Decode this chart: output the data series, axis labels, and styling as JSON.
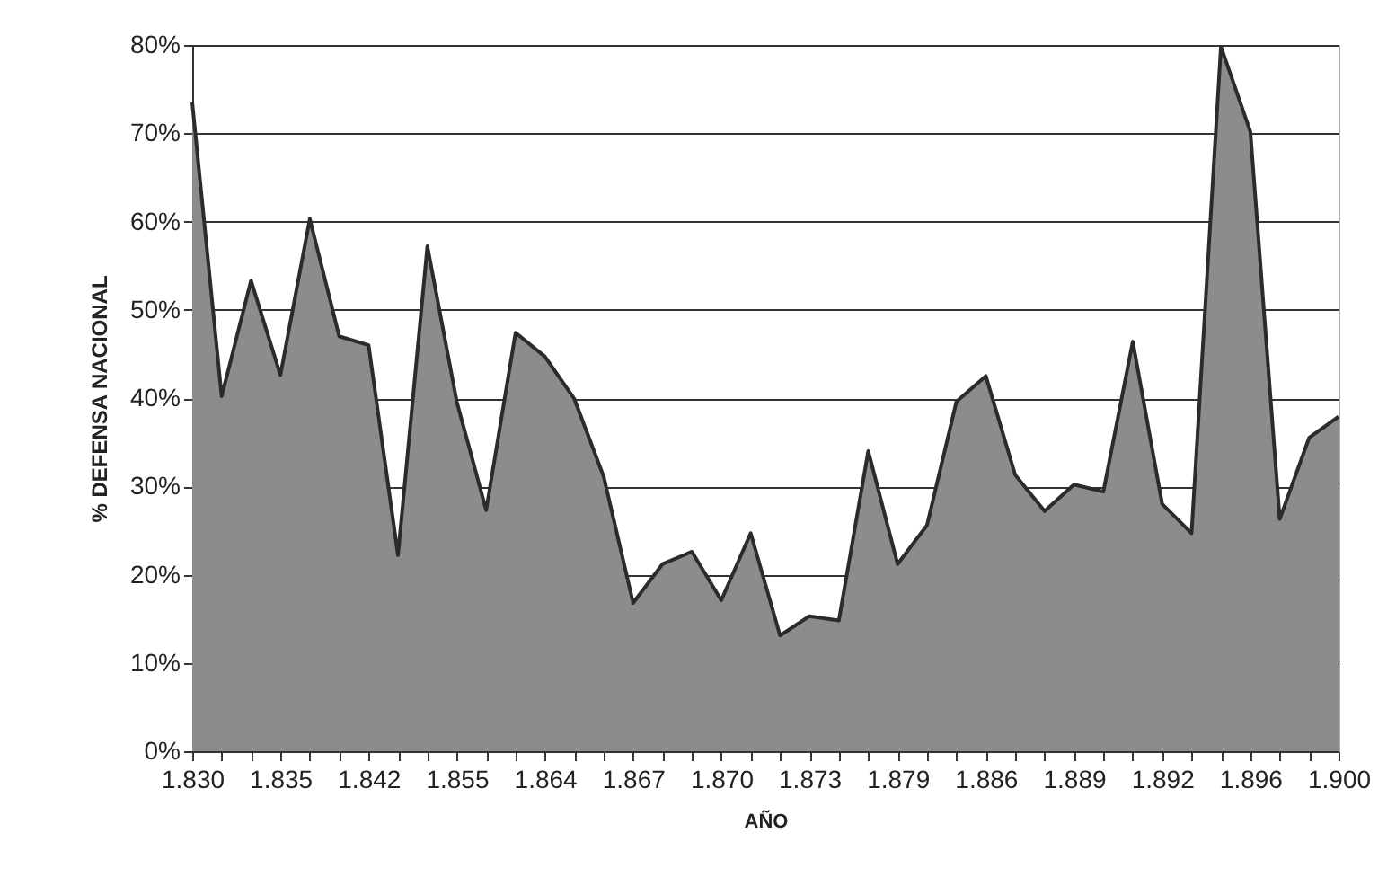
{
  "chart_data": {
    "type": "area",
    "xlabel": "AÑO",
    "ylabel": "% DEFENSA NACIONAL",
    "categories": [
      "1.830",
      null,
      null,
      "1.835",
      null,
      null,
      "1.842",
      null,
      null,
      "1.855",
      null,
      null,
      "1.864",
      null,
      null,
      "1.867",
      null,
      null,
      "1.870",
      null,
      null,
      "1.873",
      null,
      null,
      "1.879",
      null,
      null,
      "1.886",
      null,
      null,
      "1.889",
      null,
      null,
      "1.892",
      null,
      null,
      "1.896",
      null,
      null,
      "1.900"
    ],
    "series": [
      {
        "color": "#8c8c8c",
        "values": [
          73.5,
          40.2,
          53.3,
          42.6,
          60.3,
          47.0,
          46.0,
          22.2,
          57.2,
          39.6,
          27.3,
          47.4,
          44.7,
          39.9,
          31.1,
          16.8,
          21.2,
          22.6,
          17.1,
          24.7,
          13.1,
          15.3,
          14.8,
          34.0,
          21.2,
          25.6,
          39.6,
          42.5,
          31.3,
          27.2,
          30.2,
          29.4,
          46.4,
          28.0,
          24.7,
          79.8,
          70.2,
          26.3,
          35.5,
          37.9
        ]
      }
    ],
    "ylim": [
      0,
      80
    ],
    "yticks": [
      {
        "value": 0,
        "label": "0%"
      },
      {
        "value": 10,
        "label": "10%"
      },
      {
        "value": 20,
        "label": "20%"
      },
      {
        "value": 30,
        "label": "30%"
      },
      {
        "value": 40,
        "label": "40%"
      },
      {
        "value": 50,
        "label": "50%"
      },
      {
        "value": 60,
        "label": "60%"
      },
      {
        "value": 70,
        "label": "70%"
      },
      {
        "value": 80,
        "label": "80%"
      }
    ],
    "grid": "y"
  }
}
